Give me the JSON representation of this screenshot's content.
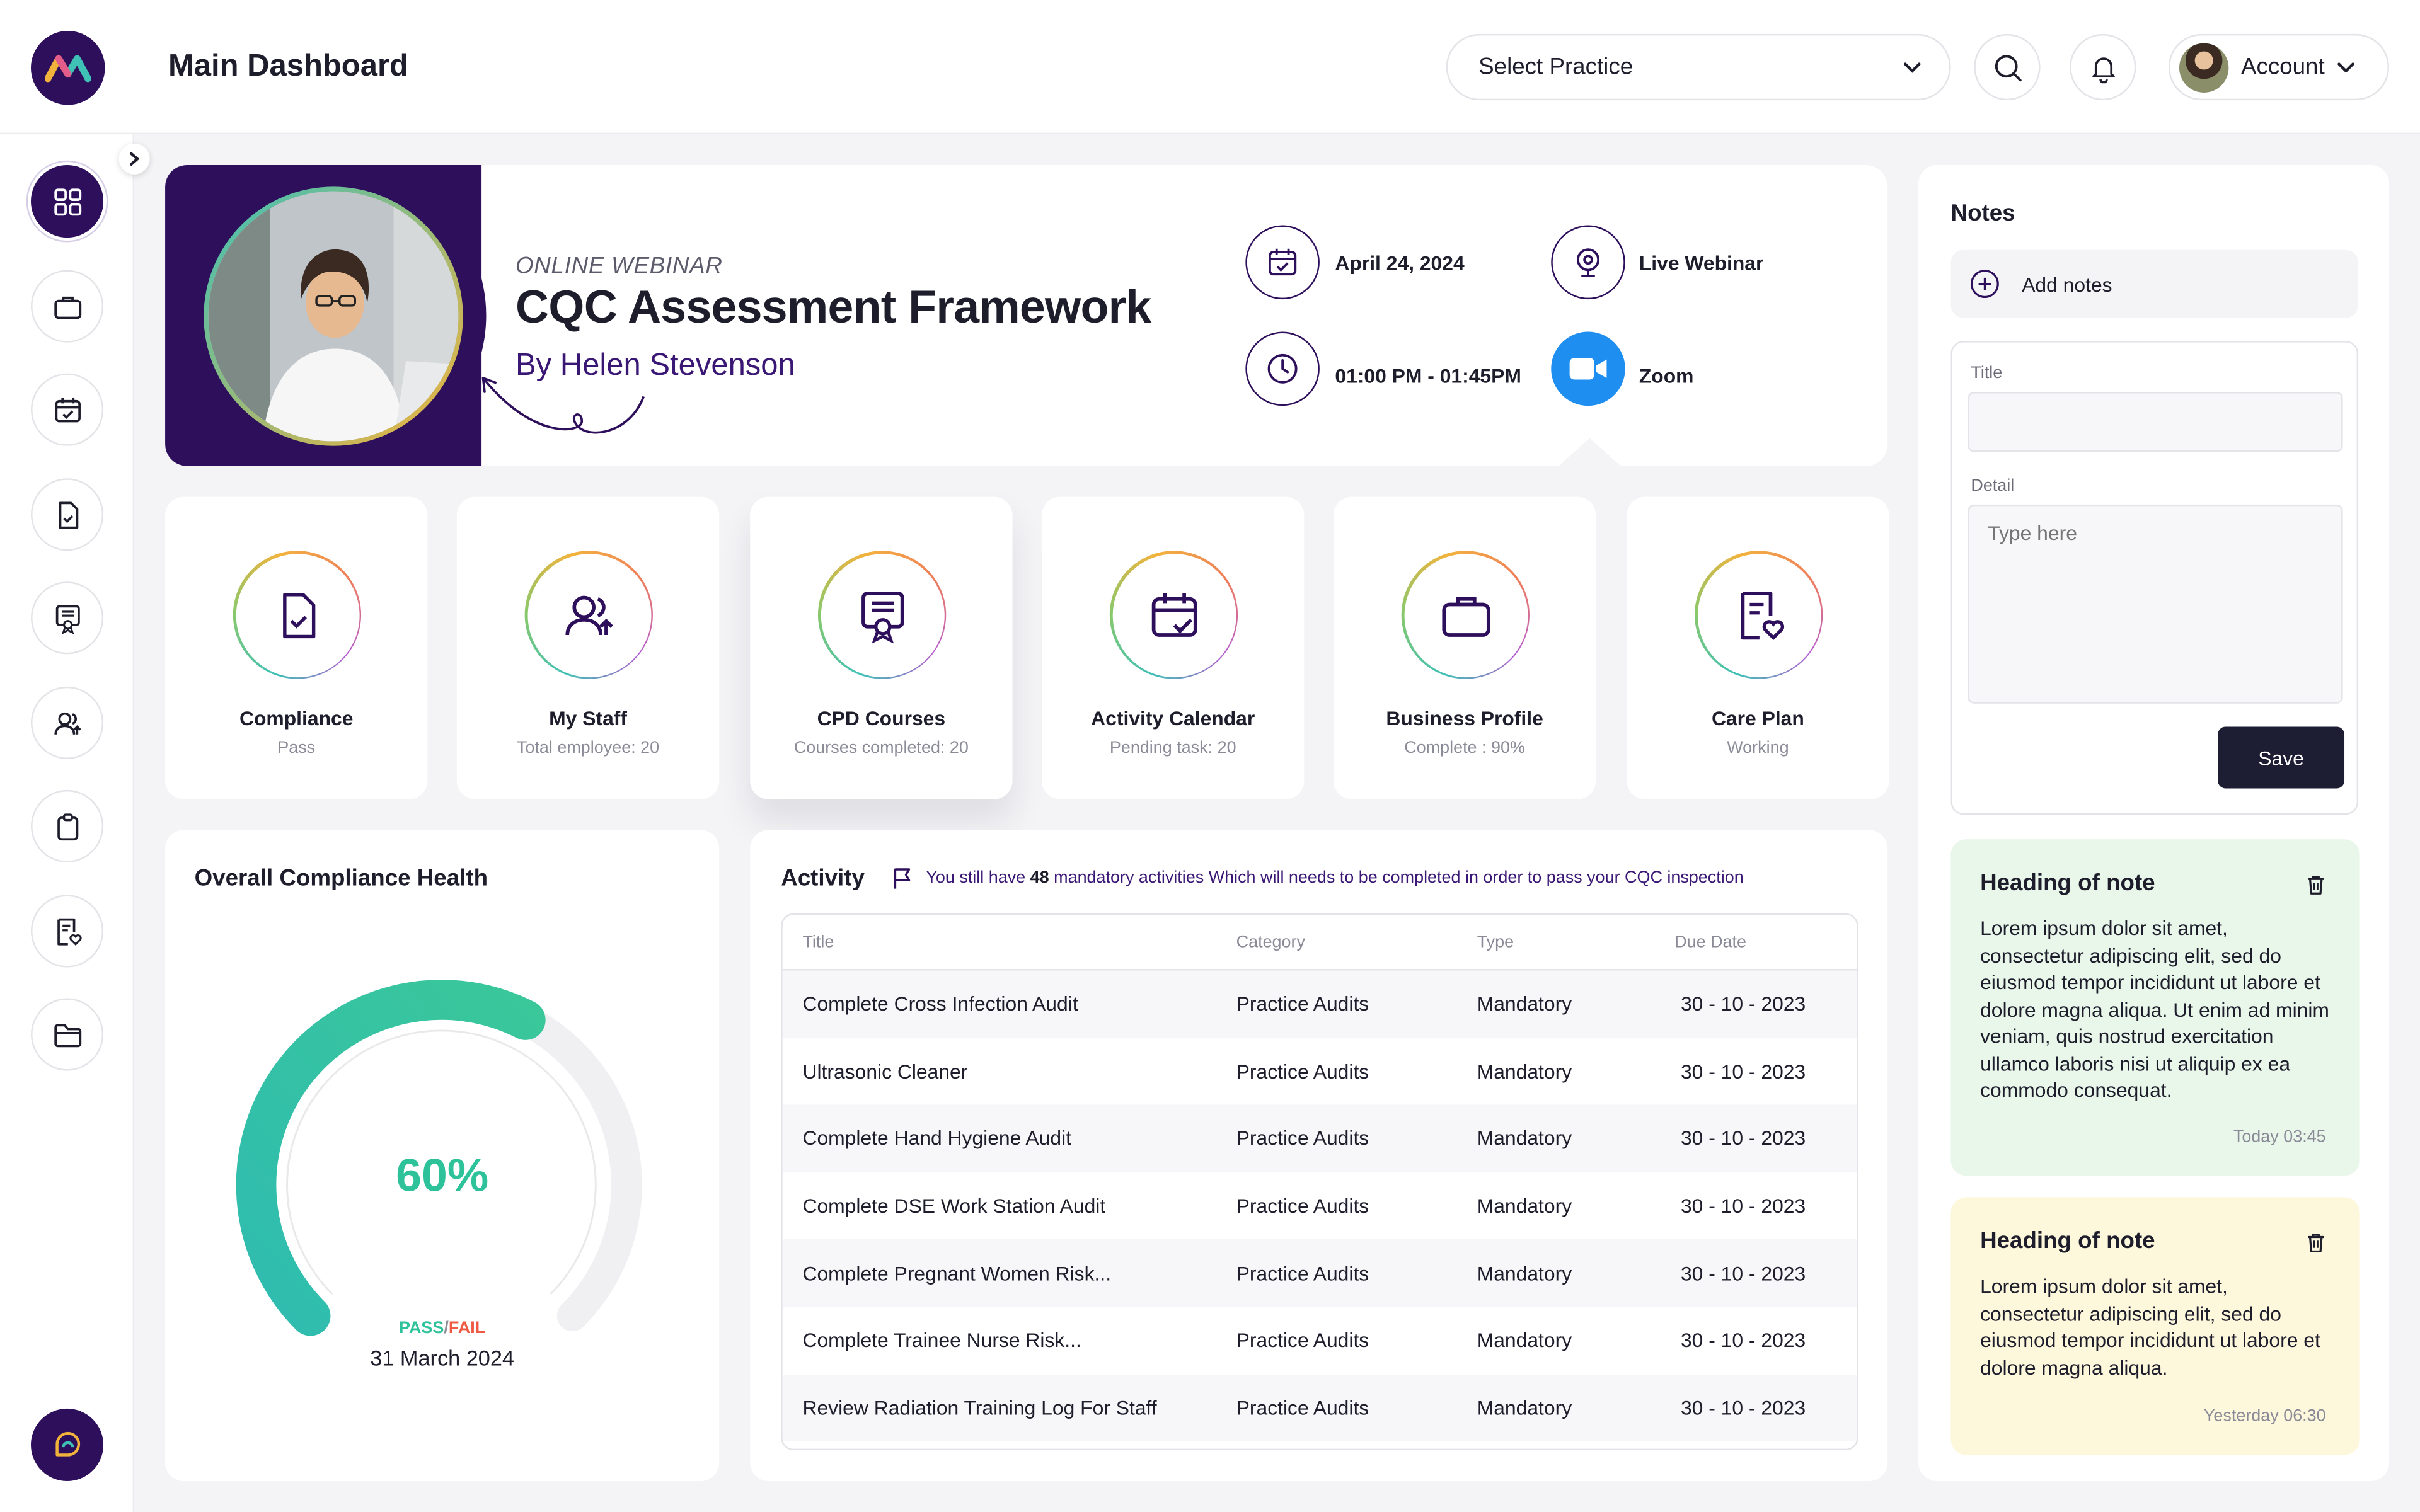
{
  "header": {
    "title": "Main Dashboard",
    "practice_select": "Select Practice",
    "account_label": "Account"
  },
  "sidebar": {
    "items": [
      {
        "icon": "grid-icon",
        "active": true
      },
      {
        "icon": "briefcase-icon"
      },
      {
        "icon": "calendar-check-icon"
      },
      {
        "icon": "file-check-icon"
      },
      {
        "icon": "certificate-icon"
      },
      {
        "icon": "staff-icon"
      },
      {
        "icon": "clipboard-icon"
      },
      {
        "icon": "document-heart-icon"
      },
      {
        "icon": "folder-icon"
      }
    ]
  },
  "banner": {
    "kicker": "ONLINE WEBINAR",
    "title": "CQC Assessment Framework",
    "presenter": "By Helen Stevenson",
    "date": "April 24, 2024",
    "time": "01:00 PM  -  01:45PM",
    "format": "Live Webinar",
    "platform": "Zoom"
  },
  "modules": [
    {
      "title": "Compliance",
      "sub": "Pass",
      "icon": "file-check-icon"
    },
    {
      "title": "My Staff",
      "sub": "Total employee: 20",
      "icon": "staff-upload-icon"
    },
    {
      "title": "CPD Courses",
      "sub": "Courses completed: 20",
      "icon": "certificate-icon"
    },
    {
      "title": "Activity Calendar",
      "sub": "Pending task: 20",
      "icon": "calendar-check-icon"
    },
    {
      "title": "Business Profile",
      "sub": "Complete : 90%",
      "icon": "briefcase-icon"
    },
    {
      "title": "Care Plan",
      "sub": "Working",
      "icon": "document-heart-icon"
    }
  ],
  "compliance": {
    "title": "Overall Compliance Health",
    "percent_label": "60%",
    "percent_value": 0.6,
    "pass": "PASS",
    "separator": "/",
    "fail": "FAIL",
    "date": "31 March 2024",
    "colors": {
      "gauge_start": "#2fbcb0",
      "gauge_end": "#3ac79a",
      "pass": "#2ec29a",
      "fail": "#ef5a45"
    }
  },
  "activity": {
    "title": "Activity",
    "notice_pre": "You still have ",
    "notice_count": "48",
    "notice_post": " mandatory activities Which will needs to be completed in order to pass your CQC inspection",
    "columns": [
      "Title",
      "Category",
      "Type",
      "Due Date"
    ],
    "rows": [
      [
        "Complete Cross Infection Audit",
        "Practice Audits",
        "Mandatory",
        "30 - 10 - 2023"
      ],
      [
        "Ultrasonic Cleaner",
        "Practice Audits",
        "Mandatory",
        "30 - 10 - 2023"
      ],
      [
        "Complete Hand Hygiene Audit",
        "Practice Audits",
        "Mandatory",
        "30 - 10 - 2023"
      ],
      [
        "Complete DSE Work Station Audit",
        "Practice Audits",
        "Mandatory",
        "30 - 10 - 2023"
      ],
      [
        "Complete Pregnant Women Risk...",
        "Practice Audits",
        "Mandatory",
        "30 - 10 - 2023"
      ],
      [
        "Complete Trainee Nurse Risk...",
        "Practice Audits",
        "Mandatory",
        "30 - 10 - 2023"
      ],
      [
        "Review Radiation Training Log For Staff",
        "Practice Audits",
        "Mandatory",
        "30 - 10 - 2023"
      ]
    ]
  },
  "notes": {
    "title": "Notes",
    "add_label": "Add notes",
    "form": {
      "title_label": "Title",
      "title_value": "",
      "detail_label": "Detail",
      "detail_placeholder": "Type here",
      "save_label": "Save"
    },
    "cards": [
      {
        "heading": "Heading of note",
        "body": "Lorem ipsum dolor sit amet, consectetur adipiscing elit, sed do eiusmod tempor incididunt ut labore et dolore magna aliqua. Ut enim ad minim veniam, quis nostrud exercitation ullamco laboris nisi ut aliquip ex ea commodo consequat.",
        "time": "Today 03:45",
        "color": "#e9f6ea"
      },
      {
        "heading": "Heading of note",
        "body": "Lorem ipsum dolor sit amet, consectetur adipiscing elit, sed do eiusmod tempor incididunt ut labore et dolore magna aliqua.",
        "time": "Yesterday 06:30",
        "color": "#fdf7dc"
      }
    ]
  }
}
